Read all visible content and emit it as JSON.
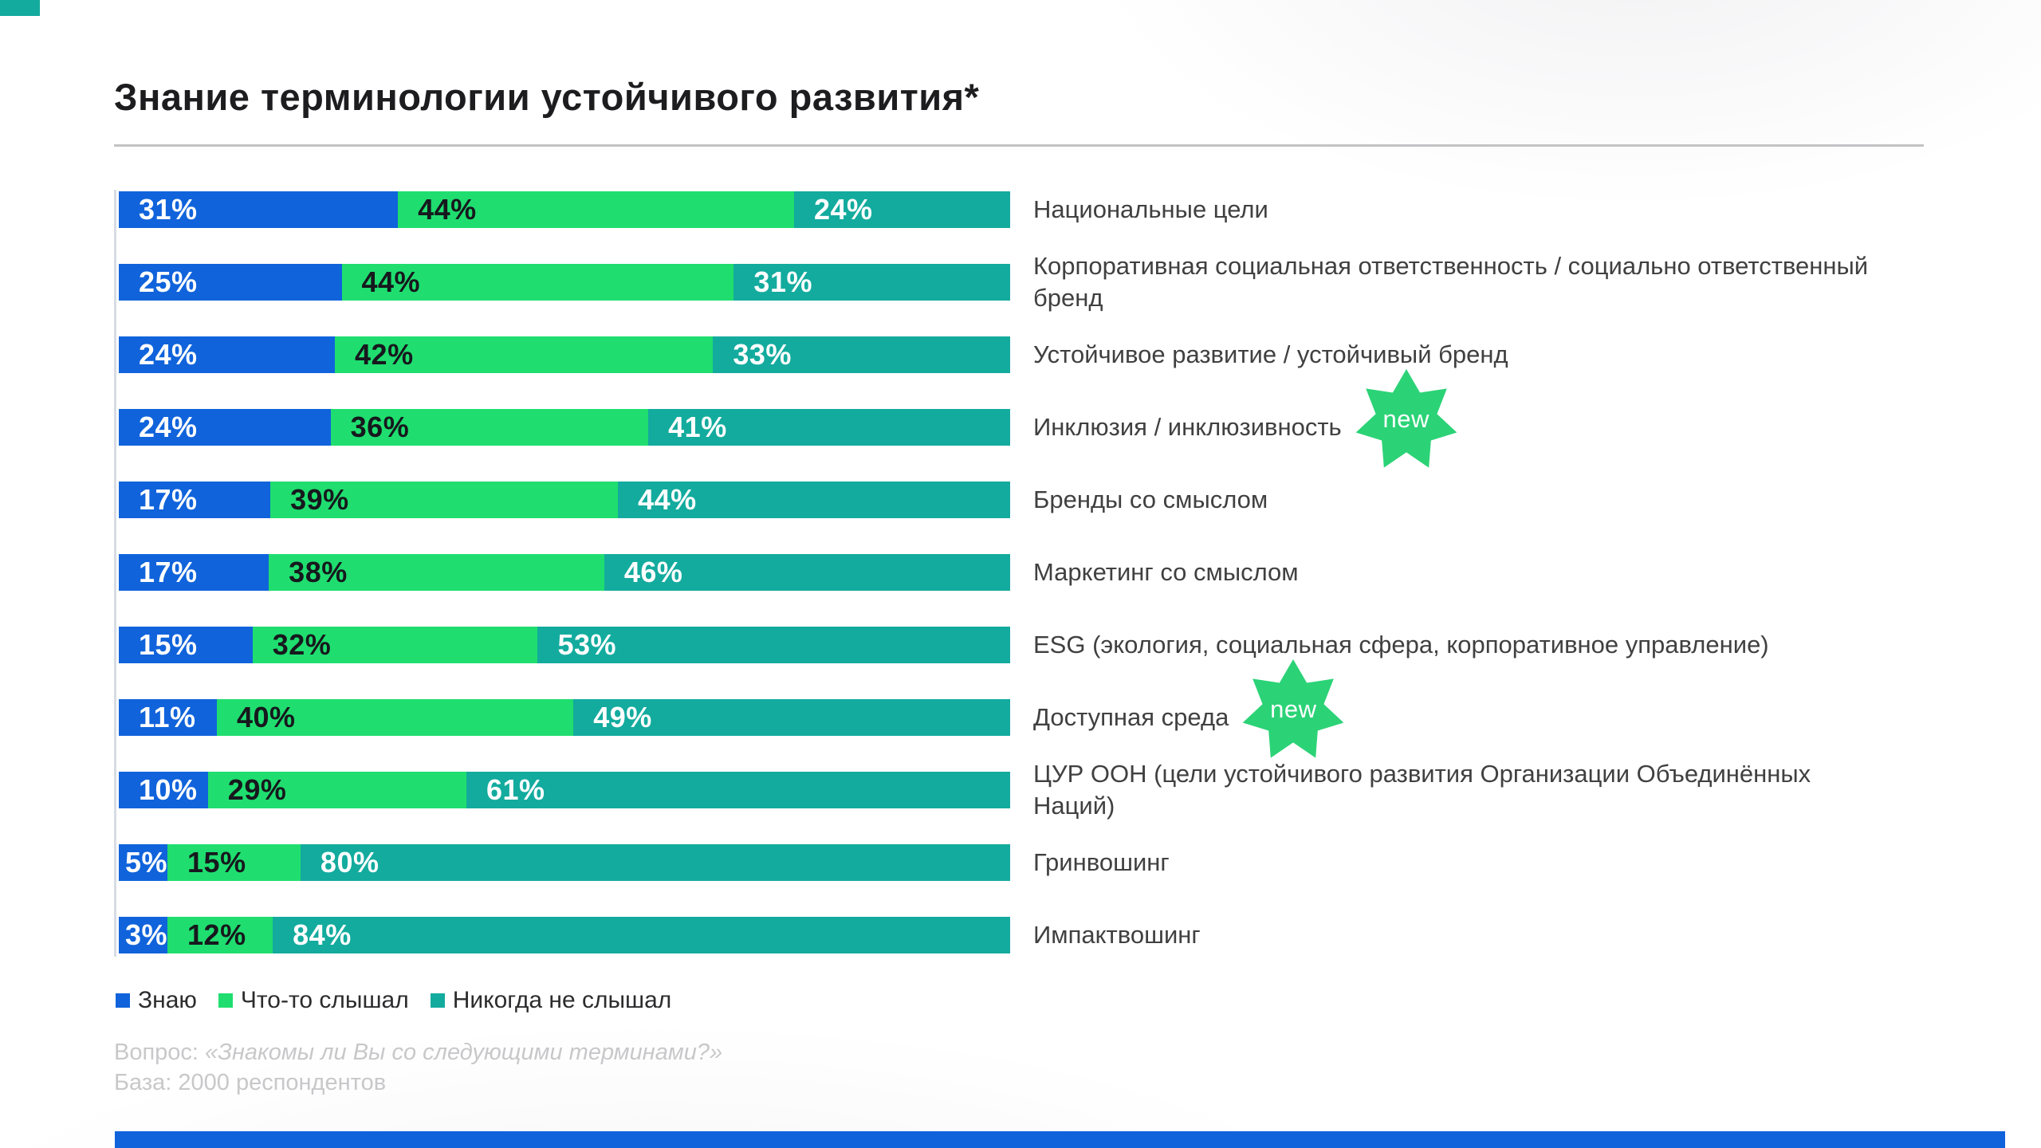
{
  "page": {
    "title": "Знание терминологии устойчивого развития*",
    "footnote": {
      "question_prefix": "Вопрос: ",
      "question_quote": "«Знакомы ли Вы со следующими терминами?»",
      "base": "База: 2000 респондентов"
    },
    "new_badge_label": "new"
  },
  "colors": {
    "know_blue": "#1063DB",
    "heard_green": "#1FDE6F",
    "never_teal": "#13AB9E",
    "new_badge_green": "#2BD376",
    "accent_corner_teal": "#13AB9E",
    "accent_bottom_blue": "#1063DB",
    "value_text_light": "#FFFFFF",
    "value_text_dark": "#16181D"
  },
  "chart_data": {
    "type": "bar",
    "orientation": "horizontal",
    "stacked": true,
    "unit": "%",
    "value_range": [
      0,
      100
    ],
    "legend_position": "bottom",
    "grid": false,
    "categories": [
      {
        "label": "Национальные цели",
        "new": false
      },
      {
        "label": "Корпоративная социальная ответственность / социально ответственный бренд",
        "new": false
      },
      {
        "label": "Устойчивое развитие / устойчивый бренд",
        "new": false
      },
      {
        "label": "Инклюзия / инклюзивность",
        "new": true
      },
      {
        "label": "Бренды со смыслом",
        "new": false
      },
      {
        "label": "Маркетинг со смыслом",
        "new": false
      },
      {
        "label": "ESG (экология, социальная сфера, корпоративное управление)",
        "new": false
      },
      {
        "label": "Доступная среда",
        "new": true
      },
      {
        "label": "ЦУР ООН (цели устойчивого развития Организации Объединённых Наций)",
        "new": false
      },
      {
        "label": "Гринвошинг",
        "new": false
      },
      {
        "label": "Импактвошинг",
        "new": false
      }
    ],
    "series": [
      {
        "name": "Знаю",
        "color": "#1063DB",
        "value_text_color": "#FFFFFF",
        "values": [
          31,
          25,
          24,
          24,
          17,
          17,
          15,
          11,
          10,
          5,
          3
        ]
      },
      {
        "name": "Что-то слышал",
        "color": "#1FDE6F",
        "value_text_color": "#16181D",
        "values": [
          44,
          44,
          42,
          36,
          39,
          38,
          32,
          40,
          29,
          15,
          12
        ]
      },
      {
        "name": "Никогда не слышал",
        "color": "#13AB9E",
        "value_text_color": "#FFFFFF",
        "values": [
          24,
          31,
          33,
          41,
          44,
          46,
          53,
          49,
          61,
          80,
          84
        ]
      }
    ]
  }
}
